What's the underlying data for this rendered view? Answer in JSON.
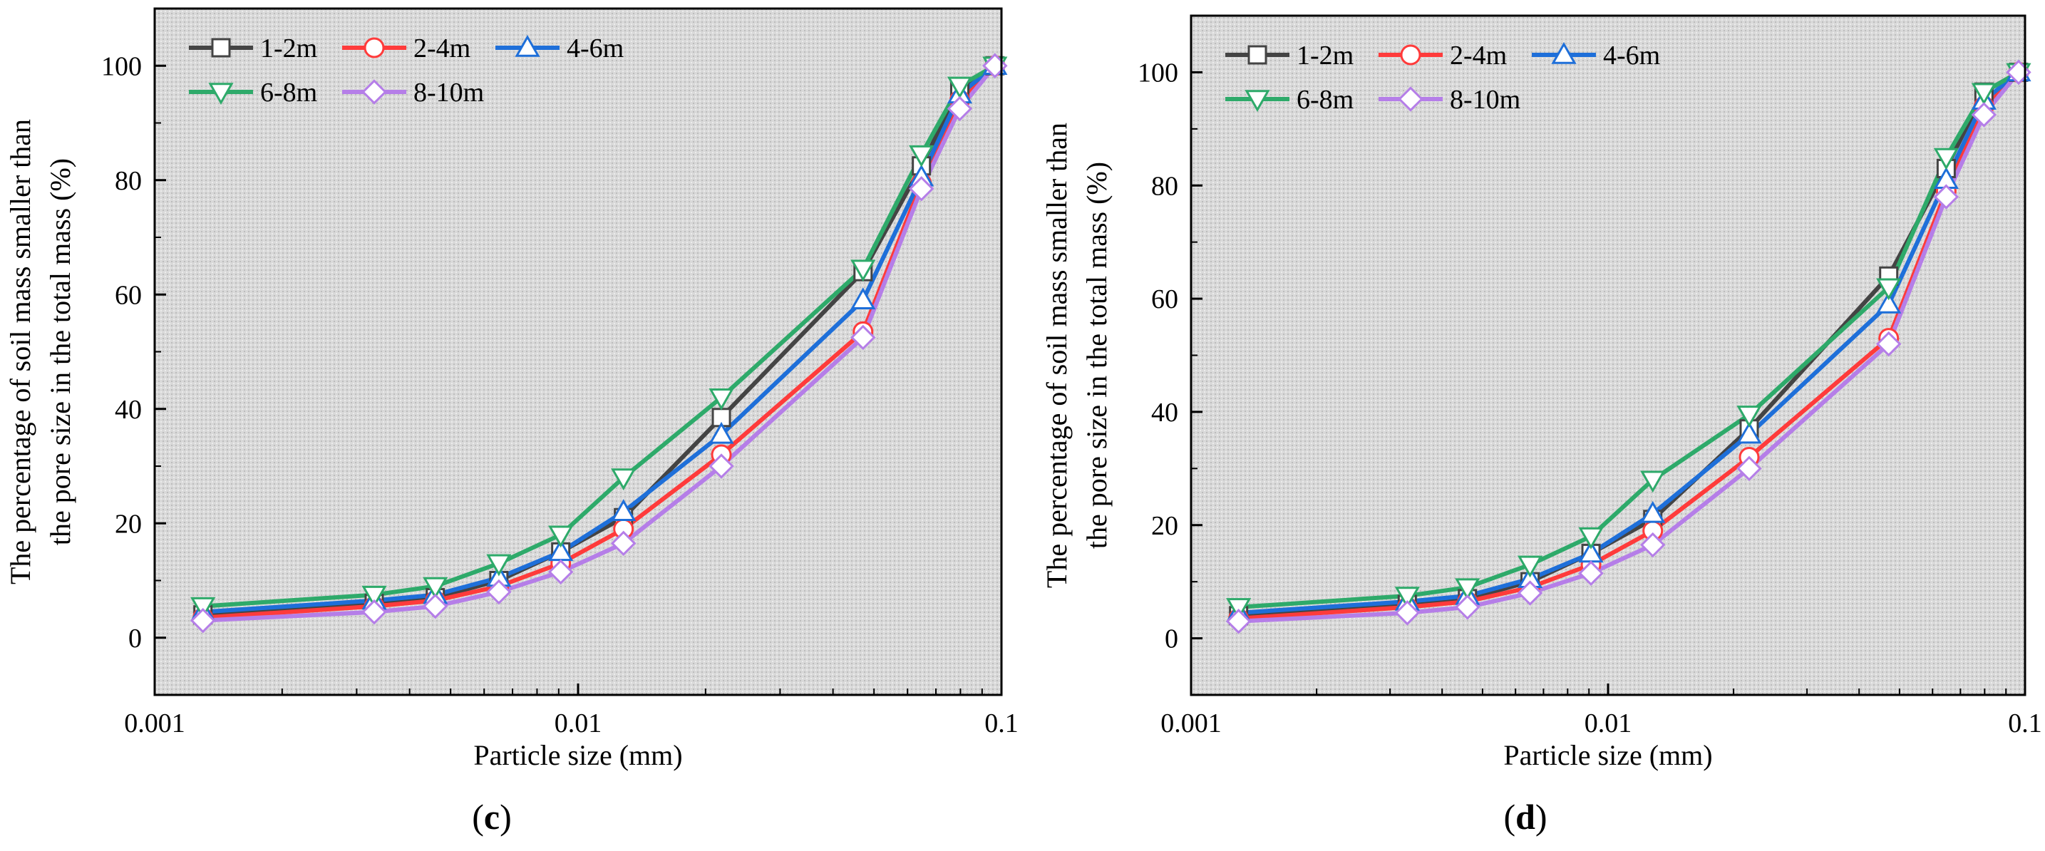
{
  "chart_data": [
    {
      "type": "line",
      "panel_label": "c",
      "xscale": "log",
      "xlabel": "Particle size (mm)",
      "ylabel_lines": [
        "The percentage of soil mass smaller than",
        "the pore size in the total mass (%)"
      ],
      "xlim": [
        0.001,
        0.1
      ],
      "ylim": [
        -10,
        110
      ],
      "x_ticks": [
        0.001,
        0.01,
        0.1
      ],
      "x_tick_labels": [
        "0.001",
        "0.01",
        "0.1"
      ],
      "y_ticks": [
        0,
        20,
        40,
        60,
        80,
        100
      ],
      "y_tick_labels": [
        "0",
        "20",
        "40",
        "60",
        "80",
        "100"
      ],
      "legend_position": "top-left",
      "x": [
        0.0013,
        0.0033,
        0.0046,
        0.0065,
        0.0091,
        0.0128,
        0.0218,
        0.0471,
        0.0647,
        0.0797,
        0.0965
      ],
      "series": [
        {
          "name": "1-2m",
          "color": "#444444",
          "marker": "square",
          "values": [
            4,
            6,
            7,
            10,
            15,
            21,
            38.5,
            64,
            82.5,
            96,
            100
          ]
        },
        {
          "name": "2-4m",
          "color": "#ff3b3b",
          "marker": "circle",
          "values": [
            3.5,
            5.5,
            6.5,
            9,
            13,
            19,
            32,
            53.5,
            79.5,
            94,
            100
          ]
        },
        {
          "name": "4-6m",
          "color": "#1e6fd9",
          "marker": "triangle-up",
          "values": [
            4.5,
            6.5,
            7.5,
            10.5,
            15,
            22,
            35.5,
            59,
            80.5,
            95,
            100
          ]
        },
        {
          "name": "6-8m",
          "color": "#2eaa6a",
          "marker": "triangle-down",
          "values": [
            5.5,
            7.5,
            9,
            13,
            18,
            28,
            42,
            64.5,
            84.5,
            96.5,
            100
          ]
        },
        {
          "name": "8-10m",
          "color": "#b57ee8",
          "marker": "diamond",
          "values": [
            3,
            4.5,
            5.5,
            8,
            11.5,
            16.5,
            30,
            52.5,
            78.5,
            92.5,
            100
          ]
        }
      ]
    },
    {
      "type": "line",
      "panel_label": "d",
      "xscale": "log",
      "xlabel": "Particle size (mm)",
      "ylabel_lines": [
        "The percentage of soil mass smaller than",
        "the pore size in the total mass (%)"
      ],
      "xlim": [
        0.001,
        0.1
      ],
      "ylim": [
        -10,
        110
      ],
      "x_ticks": [
        0.001,
        0.01,
        0.1
      ],
      "x_tick_labels": [
        "0.001",
        "0.01",
        "0.1"
      ],
      "y_ticks": [
        0,
        20,
        40,
        60,
        80,
        100
      ],
      "y_tick_labels": [
        "0",
        "20",
        "40",
        "60",
        "80",
        "100"
      ],
      "legend_position": "top-left",
      "x": [
        0.0013,
        0.0033,
        0.0046,
        0.0065,
        0.0091,
        0.0128,
        0.0218,
        0.0471,
        0.0647,
        0.0797,
        0.0965
      ],
      "series": [
        {
          "name": "1-2m",
          "color": "#444444",
          "marker": "square",
          "values": [
            4,
            6,
            7,
            10,
            15,
            21,
            37,
            64,
            83,
            96.5,
            100
          ]
        },
        {
          "name": "2-4m",
          "color": "#ff3b3b",
          "marker": "circle",
          "values": [
            3.5,
            5.5,
            6.5,
            9,
            13,
            19,
            32,
            53,
            79,
            94,
            100
          ]
        },
        {
          "name": "4-6m",
          "color": "#1e6fd9",
          "marker": "triangle-up",
          "values": [
            4.5,
            6.5,
            7.5,
            10.5,
            15,
            22,
            36,
            59,
            81,
            95,
            100
          ]
        },
        {
          "name": "6-8m",
          "color": "#2eaa6a",
          "marker": "triangle-down",
          "values": [
            5.5,
            7.5,
            9,
            13,
            18,
            28,
            39.5,
            62,
            85,
            96.5,
            100
          ]
        },
        {
          "name": "8-10m",
          "color": "#b57ee8",
          "marker": "diamond",
          "values": [
            3,
            4.5,
            5.5,
            8,
            11.5,
            16.5,
            30,
            52,
            78,
            92.5,
            100
          ]
        }
      ]
    }
  ]
}
